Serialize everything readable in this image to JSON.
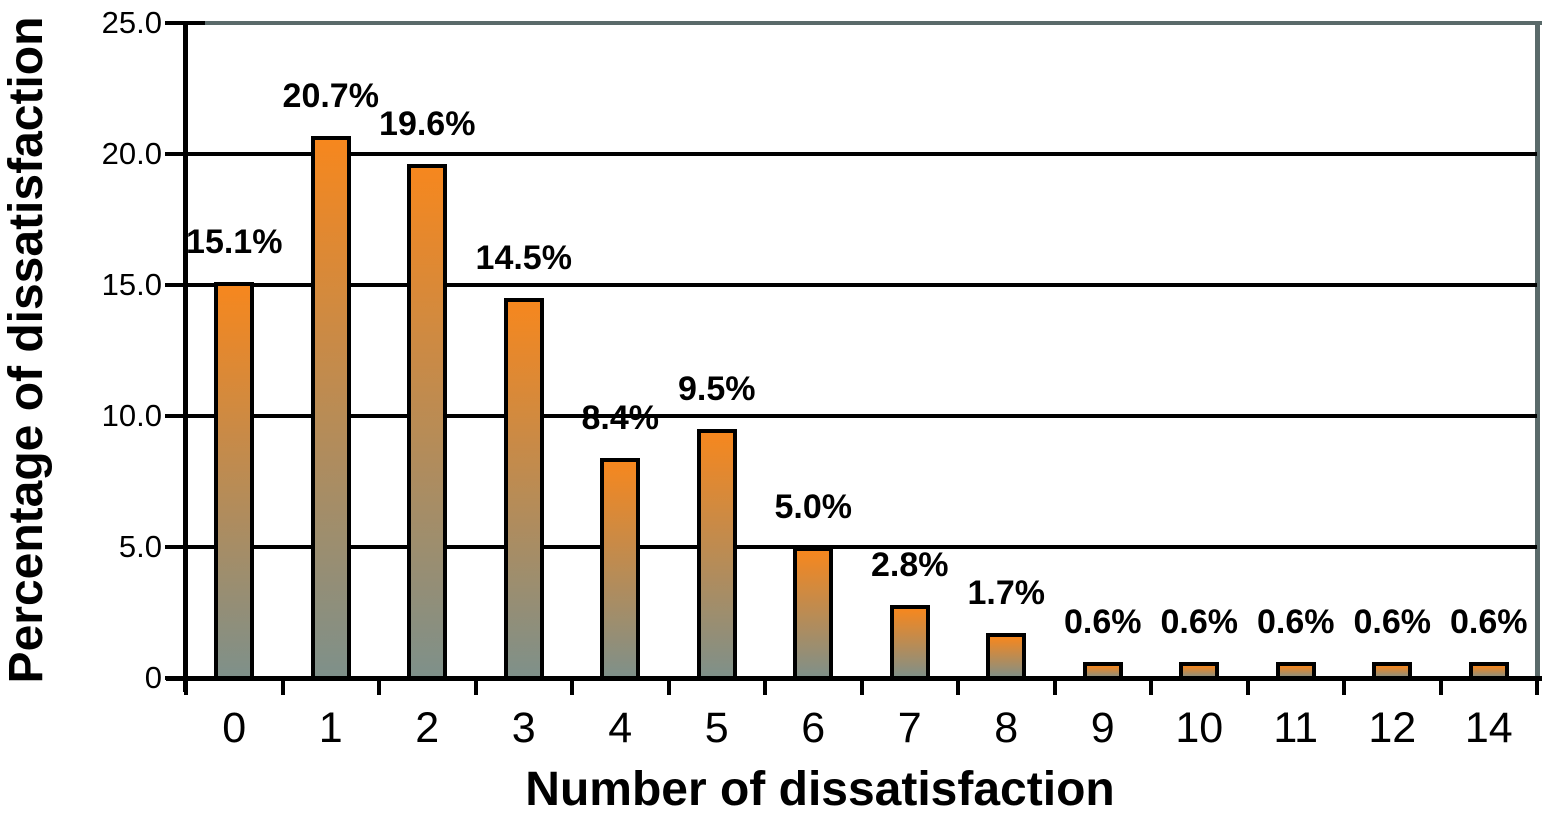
{
  "chart_data": {
    "type": "bar",
    "title": "",
    "xlabel": "Number of dissatisfaction",
    "ylabel": "Percentage of dissatisfaction",
    "categories": [
      "0",
      "1",
      "2",
      "3",
      "4",
      "5",
      "6",
      "7",
      "8",
      "9",
      "10",
      "11",
      "12",
      "14"
    ],
    "values": [
      15.1,
      20.7,
      19.6,
      14.5,
      8.4,
      9.5,
      5.0,
      2.8,
      1.7,
      0.6,
      0.6,
      0.6,
      0.6,
      0.6
    ],
    "bar_labels": [
      "15.1%",
      "20.7%",
      "19.6%",
      "14.5%",
      "8.4%",
      "9.5%",
      "5.0%",
      "2.8%",
      "1.7%",
      "0.6%",
      "0.6%",
      "0.6%",
      "0.6%",
      "0.6%"
    ],
    "ylim": [
      0,
      25
    ],
    "yticks": [
      {
        "value": 25,
        "label": "25.0"
      },
      {
        "value": 20,
        "label": "20.0"
      },
      {
        "value": 15,
        "label": "15.0"
      },
      {
        "value": 10,
        "label": "10.0"
      },
      {
        "value": 5,
        "label": "5.0"
      },
      {
        "value": 0,
        "label": "0"
      }
    ],
    "grid": true,
    "legend": "none",
    "colors": {
      "bar_gradient_top": "#F6871E",
      "bar_gradient_bottom": "#7E908A",
      "bar_border": "#000000",
      "gridline": "#000000",
      "axis": "#000000",
      "frame": "#5A6A6A",
      "background": "#FFFFFF"
    }
  }
}
